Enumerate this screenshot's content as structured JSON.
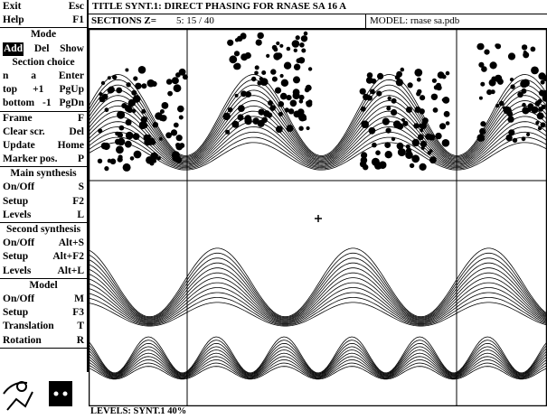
{
  "header": {
    "title": "TITLE SYNT.1: DIRECT PHASING FOR RNASE SA 16 A",
    "sections_label": "SECTIONS Z=",
    "sections_value": "5: 15 / 40",
    "model": "MODEL: rnase sa.pdb"
  },
  "menu": {
    "groups": [
      {
        "rows": [
          [
            "Exit",
            "Esc"
          ],
          [
            "Help",
            "F1"
          ]
        ]
      },
      {
        "rows": [
          [
            "Mode"
          ],
          [
            "Add",
            "Del",
            "Show"
          ],
          [
            "Section choice"
          ],
          [
            "n",
            "a",
            "Enter"
          ],
          [
            "top",
            "+1",
            "PgUp"
          ],
          [
            "bottom",
            "-1",
            "PgDn"
          ]
        ]
      },
      {
        "rows": [
          [
            "Frame",
            "F"
          ],
          [
            "Clear scr.",
            "Del"
          ],
          [
            "Update",
            "Home"
          ],
          [
            "Marker pos.",
            "P"
          ]
        ]
      },
      {
        "rows": [
          [
            "Main synthesis"
          ],
          [
            "On/Off",
            "S"
          ],
          [
            "Setup",
            "F2"
          ],
          [
            "Levels",
            "L"
          ]
        ]
      },
      {
        "rows": [
          [
            "Second synthesis"
          ],
          [
            "On/Off",
            "Alt+S"
          ],
          [
            "Setup",
            "Alt+F2"
          ],
          [
            "Levels",
            "Alt+L"
          ]
        ]
      },
      {
        "rows": [
          [
            "Model"
          ],
          [
            "On/Off",
            "M"
          ],
          [
            "Setup",
            "F3"
          ],
          [
            "Translation",
            "T"
          ],
          [
            "Rotation",
            "R"
          ]
        ]
      }
    ]
  },
  "footer": {
    "levels": "LEVELS: SYNT.1 40%"
  }
}
